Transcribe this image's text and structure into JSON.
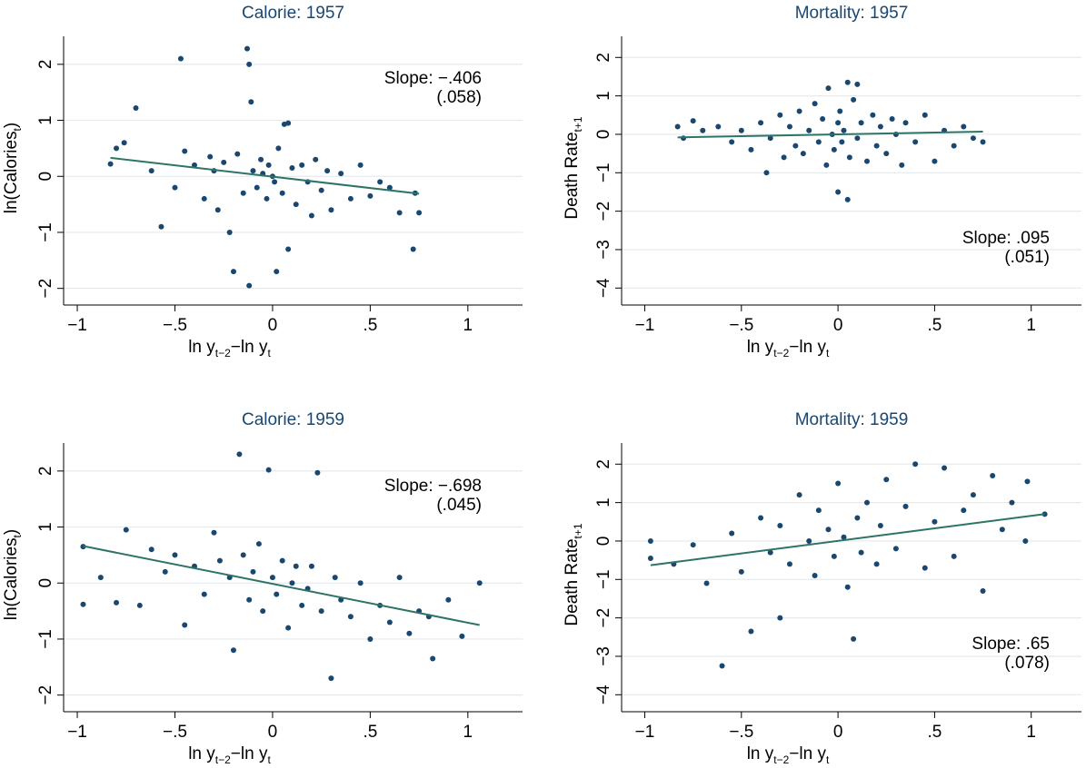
{
  "chart_data": [
    {
      "type": "scatter",
      "title": "Calorie: 1957",
      "x_label": [
        "ln y",
        "t−2",
        "−ln y",
        "t"
      ],
      "y_label": [
        "ln(Calories",
        "t",
        ")"
      ],
      "annotation": [
        "Slope: −.406",
        "(.058)"
      ],
      "x": [
        -0.83,
        -0.8,
        -0.76,
        -0.7,
        -0.62,
        -0.57,
        -0.5,
        -0.47,
        -0.45,
        -0.4,
        -0.35,
        -0.32,
        -0.3,
        -0.28,
        -0.25,
        -0.22,
        -0.2,
        -0.18,
        -0.15,
        -0.13,
        -0.12,
        -0.12,
        -0.11,
        -0.1,
        -0.08,
        -0.06,
        -0.05,
        -0.03,
        -0.02,
        0,
        0.01,
        0.02,
        0.03,
        0.05,
        0.06,
        0.08,
        0.08,
        0.1,
        0.12,
        0.15,
        0.18,
        0.2,
        0.22,
        0.25,
        0.28,
        0.3,
        0.35,
        0.4,
        0.45,
        0.5,
        0.55,
        0.6,
        0.65,
        0.72,
        0.73,
        0.75
      ],
      "y": [
        0.22,
        0.5,
        0.6,
        1.22,
        0.1,
        -0.9,
        -0.2,
        2.1,
        0.45,
        0.2,
        -0.4,
        0.35,
        0.1,
        -0.6,
        0.25,
        -1.0,
        -1.7,
        0.4,
        -0.3,
        2.28,
        2.0,
        -1.95,
        1.33,
        0.1,
        -0.2,
        0.3,
        0.05,
        -0.4,
        0.2,
        0.0,
        -0.1,
        -1.7,
        0.5,
        -0.3,
        0.93,
        0.95,
        -1.3,
        0.15,
        -0.5,
        0.2,
        -0.1,
        -0.7,
        0.3,
        -0.25,
        0.1,
        -0.6,
        0.05,
        -0.4,
        0.2,
        -0.35,
        -0.1,
        -0.2,
        -0.65,
        -1.3,
        -0.3,
        -0.65
      ],
      "fit": {
        "x": [
          -0.83,
          0.75
        ],
        "y": [
          0.33,
          -0.31
        ]
      },
      "xlim": [
        -1.07,
        1.28
      ],
      "ylim": [
        -2.2,
        2.5
      ],
      "xticks": [
        {
          "value": -1,
          "label": "−1"
        },
        {
          "value": -0.5,
          "label": "−.5"
        },
        0,
        {
          "value": 0.5,
          "label": ".5"
        },
        1
      ],
      "yticks": [
        {
          "value": -2,
          "label": "−2"
        },
        {
          "value": -1,
          "label": "−1"
        },
        0,
        1,
        2
      ],
      "color": "#1a476f",
      "fit_color": "#2d7466",
      "grid": true
    },
    {
      "type": "scatter",
      "title": "Mortality: 1957",
      "x_label": [
        "ln y",
        "t−2",
        "−ln y",
        "t"
      ],
      "y_label": [
        "Death Rate",
        "t+1"
      ],
      "annotation": [
        "Slope: .095",
        "(.051)"
      ],
      "x": [
        -0.83,
        -0.8,
        -0.75,
        -0.7,
        -0.62,
        -0.55,
        -0.5,
        -0.45,
        -0.4,
        -0.37,
        -0.35,
        -0.3,
        -0.28,
        -0.25,
        -0.22,
        -0.2,
        -0.18,
        -0.15,
        -0.12,
        -0.1,
        -0.08,
        -0.06,
        -0.05,
        -0.03,
        -0.02,
        0,
        0,
        0.01,
        0.02,
        0.03,
        0.05,
        0.05,
        0.06,
        0.08,
        0.1,
        0.1,
        0.12,
        0.15,
        0.18,
        0.2,
        0.22,
        0.25,
        0.28,
        0.3,
        0.33,
        0.35,
        0.4,
        0.45,
        0.5,
        0.55,
        0.6,
        0.65,
        0.7,
        0.75
      ],
      "y": [
        0.2,
        -0.1,
        0.35,
        0.1,
        0.2,
        -0.2,
        0.1,
        -0.4,
        0.3,
        -1.0,
        -0.1,
        0.5,
        -0.6,
        0.2,
        -0.3,
        0.6,
        -0.5,
        0.1,
        0.8,
        -0.2,
        0.4,
        -0.8,
        1.2,
        0.0,
        -0.4,
        -1.5,
        0.3,
        0.6,
        -0.2,
        0.1,
        1.35,
        -1.7,
        -0.6,
        0.9,
        1.3,
        -0.1,
        0.3,
        -0.7,
        0.5,
        -0.3,
        0.2,
        -0.5,
        0.4,
        0.0,
        -0.8,
        0.3,
        -0.2,
        0.5,
        -0.7,
        0.1,
        -0.3,
        0.2,
        -0.1,
        -0.2
      ],
      "fit": {
        "x": [
          -0.83,
          0.75
        ],
        "y": [
          -0.08,
          0.07
        ]
      },
      "xlim": [
        -1.12,
        1.26
      ],
      "ylim": [
        -4.3,
        2.55
      ],
      "xticks": [
        {
          "value": -1,
          "label": "−1"
        },
        {
          "value": -0.5,
          "label": "−.5"
        },
        0,
        {
          "value": 0.5,
          "label": ".5"
        },
        1
      ],
      "yticks": [
        {
          "value": -4,
          "label": "−4"
        },
        {
          "value": -3,
          "label": "−3"
        },
        {
          "value": -2,
          "label": "−2"
        },
        {
          "value": -1,
          "label": "−1"
        },
        0,
        1,
        2
      ],
      "color": "#1a476f",
      "fit_color": "#2d7466",
      "grid": true
    },
    {
      "type": "scatter",
      "title": "Calorie: 1959",
      "x_label": [
        "ln y",
        "t−2",
        "−ln y",
        "t"
      ],
      "y_label": [
        "ln(Calories",
        "t",
        ")"
      ],
      "annotation": [
        "Slope: −.698",
        "(.045)"
      ],
      "x": [
        -0.97,
        -0.97,
        -0.88,
        -0.8,
        -0.75,
        -0.68,
        -0.62,
        -0.55,
        -0.5,
        -0.45,
        -0.4,
        -0.35,
        -0.3,
        -0.27,
        -0.22,
        -0.2,
        -0.17,
        -0.15,
        -0.12,
        -0.1,
        -0.07,
        -0.05,
        -0.02,
        0,
        0.02,
        0.05,
        0.08,
        0.1,
        0.12,
        0.15,
        0.18,
        0.2,
        0.23,
        0.25,
        0.3,
        0.32,
        0.35,
        0.4,
        0.45,
        0.5,
        0.55,
        0.6,
        0.65,
        0.7,
        0.75,
        0.8,
        0.82,
        0.9,
        0.97,
        1.06
      ],
      "y": [
        -0.38,
        0.65,
        0.1,
        -0.35,
        0.95,
        -0.4,
        0.6,
        0.2,
        0.5,
        -0.75,
        0.3,
        -0.2,
        0.9,
        0.4,
        0.1,
        -1.2,
        2.3,
        0.5,
        -0.3,
        0.2,
        0.7,
        -0.5,
        2.02,
        0.1,
        -0.2,
        0.4,
        -0.8,
        0.0,
        0.3,
        -0.4,
        -0.1,
        0.3,
        1.97,
        -0.5,
        -1.7,
        0.1,
        -0.3,
        -0.6,
        0.0,
        -1.0,
        -0.4,
        -0.7,
        0.1,
        -0.9,
        -0.5,
        -0.6,
        -1.35,
        -0.3,
        -0.95,
        0.0
      ],
      "fit": {
        "x": [
          -0.97,
          1.06
        ],
        "y": [
          0.66,
          -0.75
        ]
      },
      "xlim": [
        -1.07,
        1.28
      ],
      "ylim": [
        -2.2,
        2.5
      ],
      "xticks": [
        {
          "value": -1,
          "label": "−1"
        },
        {
          "value": -0.5,
          "label": "−.5"
        },
        0,
        {
          "value": 0.5,
          "label": ".5"
        },
        1
      ],
      "yticks": [
        {
          "value": -2,
          "label": "−2"
        },
        {
          "value": -1,
          "label": "−1"
        },
        0,
        1,
        2
      ],
      "color": "#1a476f",
      "fit_color": "#2d7466",
      "grid": true
    },
    {
      "type": "scatter",
      "title": "Mortality: 1959",
      "x_label": [
        "ln y",
        "t−2",
        "−ln y",
        "t"
      ],
      "y_label": [
        "Death Rate",
        "t+1"
      ],
      "annotation": [
        "Slope: .65",
        "(.078)"
      ],
      "x": [
        -0.97,
        -0.97,
        -0.85,
        -0.75,
        -0.68,
        -0.6,
        -0.55,
        -0.5,
        -0.45,
        -0.4,
        -0.35,
        -0.3,
        -0.3,
        -0.25,
        -0.2,
        -0.15,
        -0.12,
        -0.1,
        -0.05,
        -0.02,
        0,
        0.03,
        0.05,
        0.08,
        0.1,
        0.12,
        0.15,
        0.2,
        0.22,
        0.25,
        0.3,
        0.35,
        0.4,
        0.45,
        0.5,
        0.55,
        0.6,
        0.65,
        0.7,
        0.75,
        0.8,
        0.85,
        0.9,
        0.97,
        0.98,
        1.07
      ],
      "y": [
        0.0,
        -0.45,
        -0.6,
        -0.1,
        -1.1,
        -3.25,
        0.2,
        -0.8,
        -2.35,
        0.6,
        -0.3,
        -2.0,
        0.4,
        -0.6,
        1.2,
        0.0,
        -0.9,
        0.8,
        0.3,
        -0.4,
        1.5,
        0.1,
        -1.2,
        -2.55,
        0.6,
        -0.3,
        1.0,
        -0.6,
        0.4,
        1.6,
        -0.2,
        0.9,
        2.0,
        -0.7,
        0.5,
        1.9,
        -0.4,
        0.8,
        1.2,
        -1.3,
        1.7,
        0.3,
        1.0,
        0.0,
        1.55,
        0.7
      ],
      "fit": {
        "x": [
          -0.97,
          1.07
        ],
        "y": [
          -0.63,
          0.7
        ]
      },
      "xlim": [
        -1.12,
        1.26
      ],
      "ylim": [
        -4.3,
        2.55
      ],
      "xticks": [
        {
          "value": -1,
          "label": "−1"
        },
        {
          "value": -0.5,
          "label": "−.5"
        },
        0,
        {
          "value": 0.5,
          "label": ".5"
        },
        1
      ],
      "yticks": [
        {
          "value": -4,
          "label": "−4"
        },
        {
          "value": -3,
          "label": "−3"
        },
        {
          "value": -2,
          "label": "−2"
        },
        {
          "value": -1,
          "label": "−1"
        },
        0,
        1,
        2
      ],
      "color": "#1a476f",
      "fit_color": "#2d7466",
      "grid": true
    }
  ]
}
